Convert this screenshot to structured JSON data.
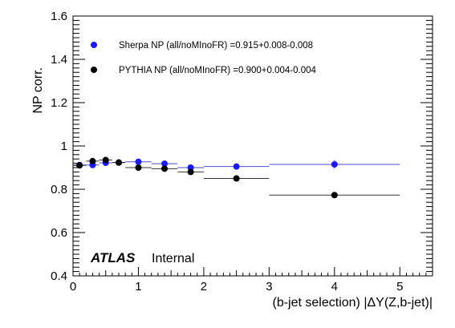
{
  "chart_data": {
    "type": "scatter",
    "title": "",
    "xlabel": "(b-jet selection) |ΔY(Z,b-jet)|",
    "ylabel": "NP corr.",
    "xlim": [
      0,
      5.5
    ],
    "ylim": [
      0.4,
      1.6
    ],
    "x_ticks": [
      "0",
      "1",
      "2",
      "3",
      "4",
      "5"
    ],
    "y_ticks": [
      "0.4",
      "0.6",
      "0.8",
      "1",
      "1.2",
      "1.4",
      "1.6"
    ],
    "grid": false,
    "legend_position": "top-left",
    "series": [
      {
        "name": "Sherpa NP (all/noMInoFR) =0.915+0.008-0.008",
        "color": "#1a1aff",
        "error_color": "#4b4bd6",
        "points": [
          {
            "x": 0.1,
            "x_low": 0.0,
            "x_high": 0.2,
            "y": 0.912,
            "y_err": 0.006
          },
          {
            "x": 0.3,
            "x_low": 0.2,
            "x_high": 0.4,
            "y": 0.912,
            "y_err": 0.006
          },
          {
            "x": 0.5,
            "x_low": 0.4,
            "x_high": 0.6,
            "y": 0.922,
            "y_err": 0.006
          },
          {
            "x": 0.7,
            "x_low": 0.6,
            "x_high": 0.8,
            "y": 0.924,
            "y_err": 0.006
          },
          {
            "x": 1.0,
            "x_low": 0.8,
            "x_high": 1.2,
            "y": 0.927,
            "y_err": 0.006
          },
          {
            "x": 1.4,
            "x_low": 1.2,
            "x_high": 1.6,
            "y": 0.918,
            "y_err": 0.006
          },
          {
            "x": 1.8,
            "x_low": 1.6,
            "x_high": 2.0,
            "y": 0.9,
            "y_err": 0.006
          },
          {
            "x": 2.5,
            "x_low": 2.0,
            "x_high": 3.0,
            "y": 0.905,
            "y_err": 0.006
          },
          {
            "x": 4.0,
            "x_low": 3.0,
            "x_high": 5.0,
            "y": 0.915,
            "y_err": 0.02
          }
        ]
      },
      {
        "name": "PYTHIA NP (all/noMInoFR) =0.900+0.004-0.004",
        "color": "#000000",
        "error_color": "#333333",
        "points": [
          {
            "x": 0.1,
            "x_low": 0.0,
            "x_high": 0.2,
            "y": 0.91,
            "y_err": 0.004
          },
          {
            "x": 0.3,
            "x_low": 0.2,
            "x_high": 0.4,
            "y": 0.93,
            "y_err": 0.004
          },
          {
            "x": 0.5,
            "x_low": 0.4,
            "x_high": 0.6,
            "y": 0.935,
            "y_err": 0.004
          },
          {
            "x": 0.7,
            "x_low": 0.6,
            "x_high": 0.8,
            "y": 0.923,
            "y_err": 0.004
          },
          {
            "x": 1.0,
            "x_low": 0.8,
            "x_high": 1.2,
            "y": 0.9,
            "y_err": 0.004
          },
          {
            "x": 1.4,
            "x_low": 1.2,
            "x_high": 1.6,
            "y": 0.895,
            "y_err": 0.004
          },
          {
            "x": 1.8,
            "x_low": 1.6,
            "x_high": 2.0,
            "y": 0.88,
            "y_err": 0.004
          },
          {
            "x": 2.5,
            "x_low": 2.0,
            "x_high": 3.0,
            "y": 0.85,
            "y_err": 0.004
          },
          {
            "x": 4.0,
            "x_low": 3.0,
            "x_high": 5.0,
            "y": 0.773,
            "y_err": 0.004
          }
        ]
      }
    ],
    "annotation": {
      "experiment": "ATLAS",
      "status": "Internal"
    }
  }
}
